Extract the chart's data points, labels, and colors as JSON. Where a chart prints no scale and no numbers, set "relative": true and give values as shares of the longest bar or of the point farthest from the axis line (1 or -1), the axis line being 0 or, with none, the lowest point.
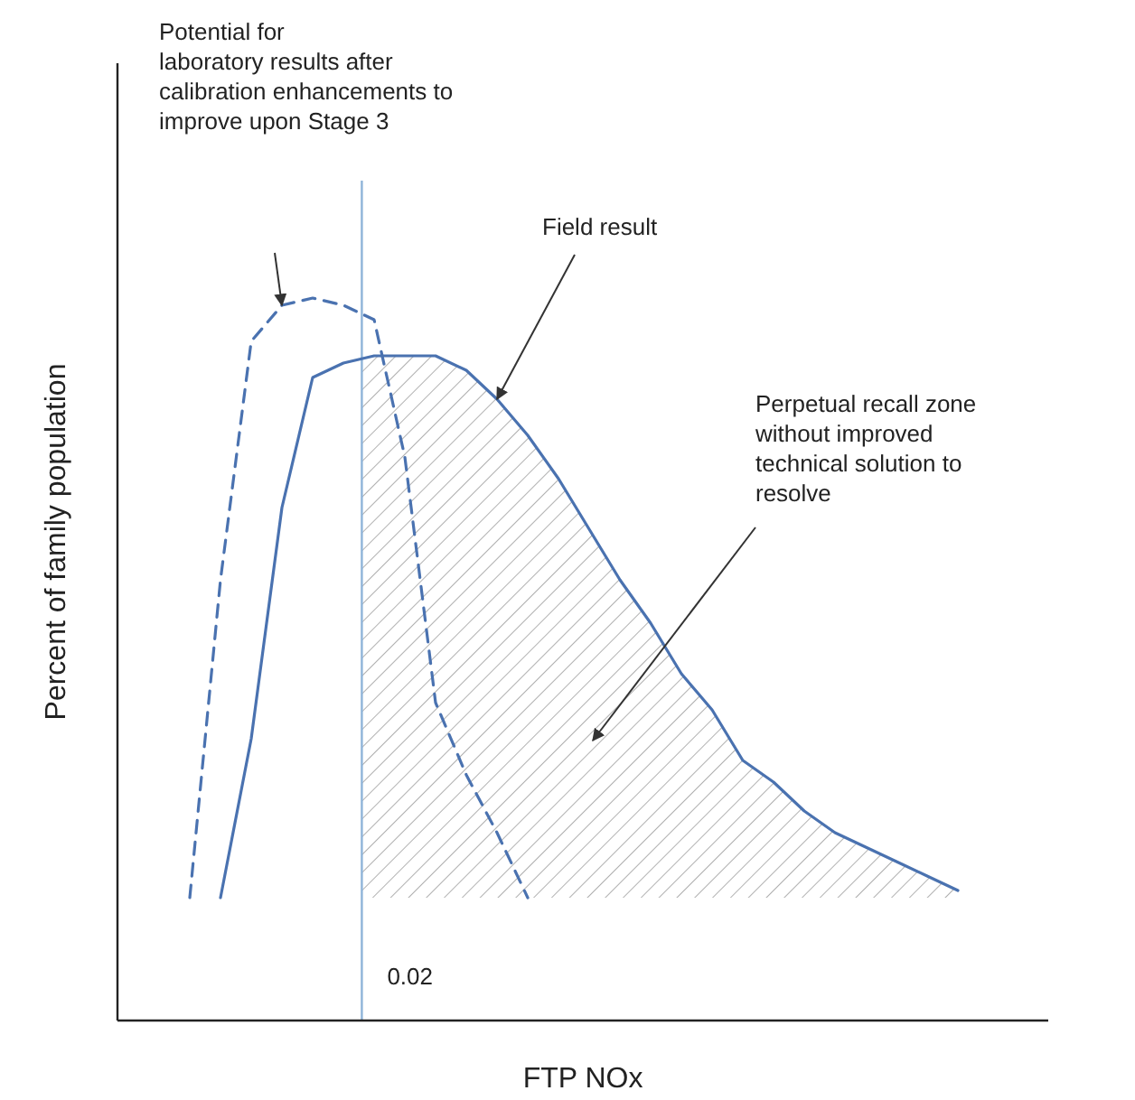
{
  "chart_data": {
    "type": "line",
    "relative": true,
    "xlabel": "FTP NOx",
    "ylabel": "Percent of family population",
    "categories": [
      null,
      null,
      null,
      null,
      null,
      null,
      null,
      null,
      null,
      null,
      null,
      null,
      null,
      null,
      null,
      null,
      null,
      null,
      null,
      null,
      null,
      null,
      null,
      null,
      null,
      null
    ],
    "series": [
      {
        "color": "#4a72b0",
        "line_style": "dashed",
        "values": [
          0.17,
          0.61,
          0.94,
          0.99,
          1,
          0.99,
          0.97,
          0.78,
          0.44,
          0.34,
          0.26,
          0.17,
          null,
          null,
          null,
          null,
          null,
          null,
          null,
          null,
          null,
          null,
          null,
          null,
          null,
          null
        ]
      },
      {
        "color": "#4a72b0",
        "line_style": "solid",
        "values": [
          null,
          0.17,
          0.39,
          0.71,
          0.89,
          0.91,
          0.92,
          0.92,
          0.92,
          0.9,
          0.86,
          0.81,
          0.75,
          0.68,
          0.61,
          0.55,
          0.48,
          0.43,
          0.36,
          0.33,
          0.29,
          0.26,
          0.24,
          0.22,
          0.2,
          0.18
        ]
      }
    ],
    "annotations": [
      "Potential for\nlaboratory results after\ncalibration enhancements to\nimprove upon Stage 3",
      "Field result",
      "Perpetual recall zone\nwithout improved\ntechnical solution to\nresolve",
      "0.02"
    ]
  }
}
